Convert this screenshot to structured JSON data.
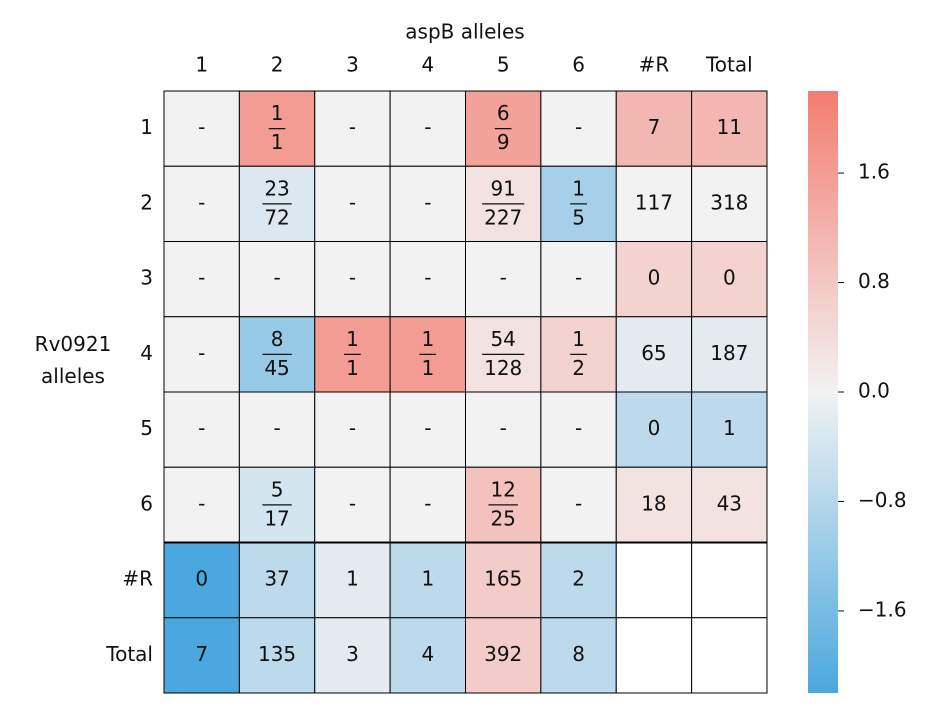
{
  "chart_data": {
    "type": "heatmap",
    "title": "aspB alleles",
    "ylabel": "Rv0921 alleles",
    "x_categories": [
      "1",
      "2",
      "3",
      "4",
      "5",
      "6",
      "#R",
      "Total"
    ],
    "y_categories": [
      "1",
      "2",
      "3",
      "4",
      "5",
      "6",
      "#R",
      "Total"
    ],
    "values": [
      [
        0,
        1.6,
        0,
        0,
        1.5,
        0,
        1.1,
        1.1
      ],
      [
        0,
        -0.3,
        0,
        0,
        0.3,
        -1.0,
        0,
        0
      ],
      [
        0,
        0,
        0,
        0,
        0,
        0,
        0.6,
        0.6
      ],
      [
        0,
        -1.2,
        1.6,
        1.6,
        0.3,
        0.6,
        -0.2,
        -0.2
      ],
      [
        0,
        0,
        0,
        0,
        0,
        0,
        -0.7,
        -0.7
      ],
      [
        0,
        -0.4,
        0,
        0,
        0.9,
        0,
        0.3,
        0.3
      ],
      [
        -2.2,
        -0.7,
        -0.2,
        -0.7,
        0.7,
        -0.7,
        null,
        null
      ],
      [
        -2.2,
        -0.7,
        -0.2,
        -0.7,
        0.7,
        -0.7,
        null,
        null
      ]
    ],
    "cell_labels": [
      [
        "-",
        [
          "1",
          "1"
        ],
        "-",
        "-",
        [
          "6",
          "9"
        ],
        "-",
        "7",
        "11"
      ],
      [
        "-",
        [
          "23",
          "72"
        ],
        "-",
        "-",
        [
          "91",
          "227"
        ],
        [
          "1",
          "5"
        ],
        "117",
        "318"
      ],
      [
        "-",
        "-",
        "-",
        "-",
        "-",
        "-",
        "0",
        "0"
      ],
      [
        "-",
        [
          "8",
          "45"
        ],
        [
          "1",
          "1"
        ],
        [
          "1",
          "1"
        ],
        [
          "54",
          "128"
        ],
        [
          "1",
          "2"
        ],
        "65",
        "187"
      ],
      [
        "-",
        "-",
        "-",
        "-",
        "-",
        "-",
        "0",
        "1"
      ],
      [
        "-",
        [
          "5",
          "17"
        ],
        "-",
        "-",
        [
          "12",
          "25"
        ],
        "-",
        "18",
        "43"
      ],
      [
        "0",
        "37",
        "1",
        "1",
        "165",
        "2",
        null,
        null
      ],
      [
        "7",
        "135",
        "3",
        "4",
        "392",
        "8",
        null,
        null
      ]
    ],
    "colormap": {
      "low": "#4aa8de",
      "mid": "#f2f2f2",
      "high": "#f47c70"
    },
    "clim": [
      -2.2,
      2.2
    ],
    "cticks": [
      1.6,
      0.8,
      {
        "value": 0,
        "label": "0.0"
      },
      {
        "value": -0.8,
        "label": "−0.8"
      },
      {
        "value": -1.6,
        "label": "−1.6"
      }
    ]
  }
}
